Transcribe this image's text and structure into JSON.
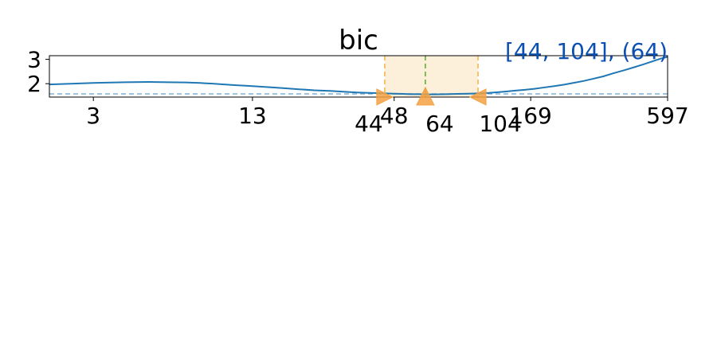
{
  "chart_data": {
    "type": "line",
    "title": "bic",
    "xlabel": "",
    "ylabel": "",
    "x_scale": "log",
    "xlim": [
      2,
      597
    ],
    "ylim": [
      1.45,
      3.15
    ],
    "x_ticks": [
      3,
      13,
      48,
      169,
      597
    ],
    "y_ticks": [
      2,
      3
    ],
    "grid": false,
    "series": [
      {
        "values_x": [
          2,
          2.5,
          3,
          4,
          5,
          6,
          7,
          8,
          9,
          10,
          11,
          12,
          13,
          15,
          17,
          20,
          23,
          27,
          30,
          34,
          38,
          42,
          44,
          48,
          52,
          56,
          60,
          64,
          70,
          78,
          86,
          95,
          104,
          115,
          125,
          135,
          145,
          160,
          175,
          190,
          210,
          230,
          250,
          275,
          300,
          330,
          360,
          400,
          440,
          480,
          520,
          560,
          597
        ],
        "values_y": [
          1.97,
          2.0,
          2.03,
          2.06,
          2.07,
          2.06,
          2.05,
          2.03,
          2.0,
          1.97,
          1.94,
          1.92,
          1.9,
          1.86,
          1.82,
          1.77,
          1.73,
          1.7,
          1.67,
          1.64,
          1.62,
          1.61,
          1.6,
          1.59,
          1.58,
          1.57,
          1.57,
          1.56,
          1.56,
          1.57,
          1.58,
          1.59,
          1.6,
          1.62,
          1.65,
          1.68,
          1.71,
          1.75,
          1.79,
          1.84,
          1.9,
          1.96,
          2.03,
          2.11,
          2.2,
          2.3,
          2.42,
          2.55,
          2.68,
          2.8,
          2.92,
          3.03,
          3.1
        ]
      }
    ],
    "baseline_y": 1.58,
    "interval": {
      "low": 44,
      "high": 104,
      "best": 64
    },
    "annotation": "[44, 104], (64)",
    "marker_labels": [
      "44",
      "64",
      "104"
    ],
    "colors": {
      "line": "#1f77b4",
      "baseline": "#7fb1d6",
      "band_fill": "#fdf0db",
      "band_edge": "#f5b342",
      "best_line": "#5aa832",
      "marker": "#f5a142",
      "annotation": "#0b4fb3"
    }
  }
}
